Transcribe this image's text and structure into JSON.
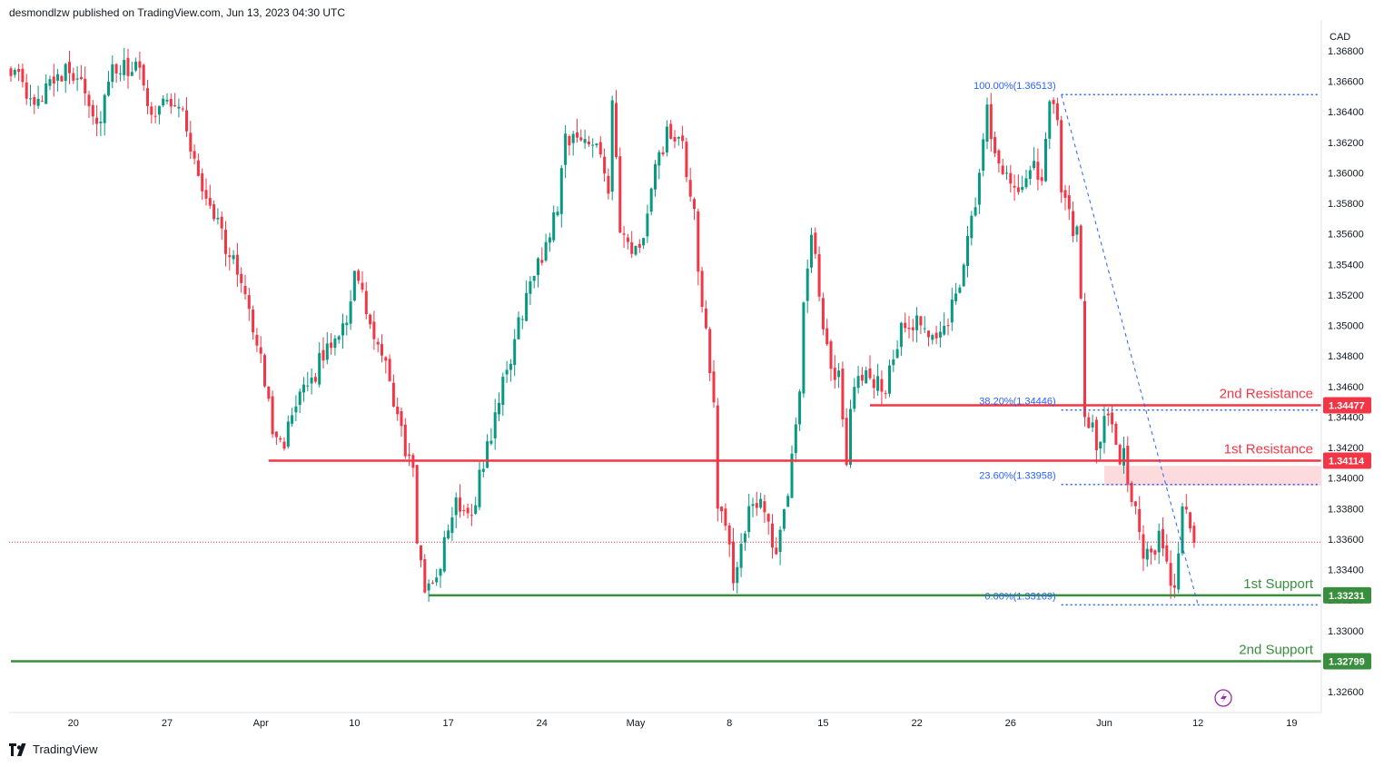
{
  "header": {
    "publisher_line": "desmondlzw published on TradingView.com, Jun 13, 2023 04:30 UTC"
  },
  "footer": {
    "brand": "TradingView"
  },
  "chart_data": {
    "type": "candlestick",
    "currency_label": "CAD",
    "y_axis": {
      "range": [
        1.325,
        1.3695
      ],
      "ticks": [
        1.326,
        1.328,
        1.33,
        1.332,
        1.334,
        1.336,
        1.338,
        1.34,
        1.342,
        1.344,
        1.346,
        1.348,
        1.35,
        1.352,
        1.354,
        1.356,
        1.358,
        1.36,
        1.362,
        1.364,
        1.366,
        1.368
      ],
      "tick_labels": [
        "1.32600",
        "1.32800",
        "1.33000",
        "1.33200",
        "1.33400",
        "1.33600",
        "1.33800",
        "1.34000",
        "1.34200",
        "1.34400",
        "1.34600",
        "1.34800",
        "1.35000",
        "1.35200",
        "1.35400",
        "1.35600",
        "1.35800",
        "1.36000",
        "1.36200",
        "1.36400",
        "1.36600",
        "1.36800"
      ]
    },
    "x_axis": {
      "ticks": [
        {
          "label": "20",
          "bar": 16
        },
        {
          "label": "27",
          "bar": 40
        },
        {
          "label": "Apr",
          "bar": 64
        },
        {
          "label": "10",
          "bar": 88
        },
        {
          "label": "17",
          "bar": 112
        },
        {
          "label": "24",
          "bar": 136
        },
        {
          "label": "May",
          "bar": 160
        },
        {
          "label": "8",
          "bar": 184
        },
        {
          "label": "15",
          "bar": 208
        },
        {
          "label": "22",
          "bar": 232
        },
        {
          "label": "26",
          "bar": 256
        },
        {
          "label": "Jun",
          "bar": 280
        },
        {
          "label": "12",
          "bar": 304
        },
        {
          "label": "19",
          "bar": 328
        }
      ],
      "bars_visible": 310
    },
    "colors": {
      "up": "#089981",
      "down": "#f23645",
      "resistance": "#f23645",
      "support": "#388e3c",
      "fib": "#2962ff",
      "zone": "rgba(242,54,69,0.18)"
    },
    "levels": [
      {
        "name": "2nd Resistance",
        "price": 1.34477,
        "price_label": "1.34477",
        "kind": "resistance",
        "from_bar": 220
      },
      {
        "name": "1st Resistance",
        "price": 1.34114,
        "price_label": "1.34114",
        "kind": "resistance",
        "from_bar": 66
      },
      {
        "name": "1st Support",
        "price": 1.33231,
        "price_label": "1.33231",
        "kind": "support",
        "from_bar": 107
      },
      {
        "name": "2nd Support",
        "price": 1.32799,
        "price_label": "1.32799",
        "kind": "support",
        "from_bar": 0
      }
    ],
    "fib_levels": [
      {
        "label": "100.00%(1.36513)",
        "price": 1.36513
      },
      {
        "label": "38.20%(1.34446)",
        "price": 1.34446
      },
      {
        "label": "23.60%(1.33958)",
        "price": 1.33958
      },
      {
        "label": "0.00%(1.33169)",
        "price": 1.33169
      }
    ],
    "current_price": 1.3358,
    "zone": {
      "top": 1.3408,
      "bottom": 1.3395
    },
    "waypoints": [
      [
        0,
        1.367
      ],
      [
        6,
        1.364
      ],
      [
        10,
        1.3665
      ],
      [
        18,
        1.3665
      ],
      [
        22,
        1.363
      ],
      [
        26,
        1.3665
      ],
      [
        32,
        1.367
      ],
      [
        36,
        1.364
      ],
      [
        40,
        1.365
      ],
      [
        44,
        1.364
      ],
      [
        48,
        1.3595
      ],
      [
        52,
        1.3575
      ],
      [
        56,
        1.3545
      ],
      [
        60,
        1.3525
      ],
      [
        64,
        1.3475
      ],
      [
        67,
        1.3435
      ],
      [
        70,
        1.3425
      ],
      [
        74,
        1.345
      ],
      [
        78,
        1.347
      ],
      [
        82,
        1.349
      ],
      [
        86,
        1.3505
      ],
      [
        88,
        1.3535
      ],
      [
        92,
        1.35
      ],
      [
        96,
        1.347
      ],
      [
        100,
        1.343
      ],
      [
        103,
        1.34
      ],
      [
        104,
        1.336
      ],
      [
        106,
        1.3332
      ],
      [
        107,
        1.3325
      ],
      [
        110,
        1.3345
      ],
      [
        114,
        1.3385
      ],
      [
        118,
        1.3378
      ],
      [
        120,
        1.34
      ],
      [
        124,
        1.344
      ],
      [
        128,
        1.348
      ],
      [
        132,
        1.352
      ],
      [
        136,
        1.3545
      ],
      [
        140,
        1.358
      ],
      [
        142,
        1.3625
      ],
      [
        146,
        1.362
      ],
      [
        150,
        1.3625
      ],
      [
        153,
        1.359
      ],
      [
        154,
        1.365
      ],
      [
        156,
        1.356
      ],
      [
        159,
        1.3545
      ],
      [
        162,
        1.3558
      ],
      [
        165,
        1.36
      ],
      [
        168,
        1.3625
      ],
      [
        172,
        1.3615
      ],
      [
        175,
        1.357
      ],
      [
        176,
        1.353
      ],
      [
        178,
        1.35
      ],
      [
        180,
        1.345
      ],
      [
        181,
        1.3375
      ],
      [
        183,
        1.337
      ],
      [
        185,
        1.333
      ],
      [
        188,
        1.337
      ],
      [
        192,
        1.339
      ],
      [
        195,
        1.336
      ],
      [
        196,
        1.3345
      ],
      [
        198,
        1.3375
      ],
      [
        200,
        1.341
      ],
      [
        202,
        1.346
      ],
      [
        203,
        1.352
      ],
      [
        205,
        1.356
      ],
      [
        207,
        1.352
      ],
      [
        210,
        1.347
      ],
      [
        212,
        1.3465
      ],
      [
        214,
        1.3415
      ],
      [
        216,
        1.3465
      ],
      [
        220,
        1.3465
      ],
      [
        224,
        1.346
      ],
      [
        228,
        1.3495
      ],
      [
        232,
        1.35
      ],
      [
        236,
        1.349
      ],
      [
        240,
        1.3505
      ],
      [
        244,
        1.354
      ],
      [
        247,
        1.358
      ],
      [
        249,
        1.3625
      ],
      [
        250,
        1.364
      ],
      [
        252,
        1.3615
      ],
      [
        255,
        1.36
      ],
      [
        258,
        1.359
      ],
      [
        261,
        1.3605
      ],
      [
        264,
        1.3595
      ],
      [
        266,
        1.364
      ],
      [
        268,
        1.364
      ],
      [
        269,
        1.359
      ],
      [
        271,
        1.357
      ],
      [
        273,
        1.356
      ],
      [
        274,
        1.352
      ],
      [
        275,
        1.3445
      ],
      [
        278,
        1.3425
      ],
      [
        280,
        1.3435
      ],
      [
        282,
        1.344
      ],
      [
        284,
        1.3415
      ],
      [
        285,
        1.342
      ],
      [
        286,
        1.34
      ],
      [
        288,
        1.338
      ],
      [
        290,
        1.335
      ],
      [
        292,
        1.3345
      ],
      [
        294,
        1.336
      ],
      [
        296,
        1.334
      ],
      [
        298,
        1.333
      ],
      [
        300,
        1.3375
      ],
      [
        302,
        1.337
      ],
      [
        303,
        1.3358
      ]
    ]
  }
}
